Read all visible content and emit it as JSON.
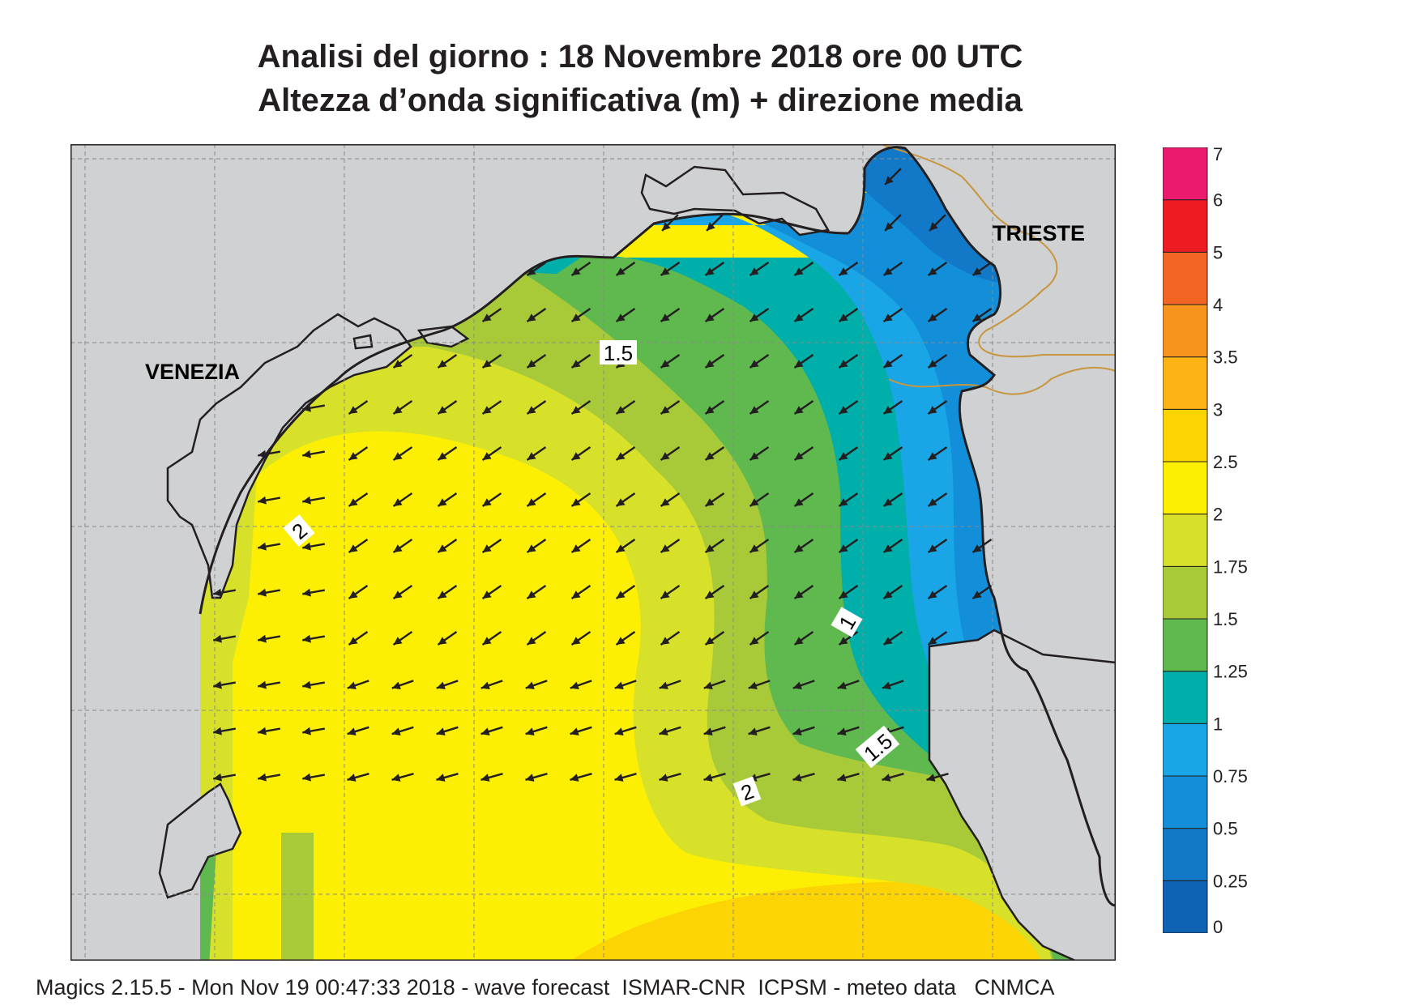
{
  "title": {
    "line1": "Analisi del giorno :  18 Novembre  2018   ore 00 UTC",
    "line2": "Altezza d’onda significativa (m) + direzione media"
  },
  "map": {
    "labels": {
      "venezia": "VENEZIA",
      "trieste": "TRIESTE"
    },
    "contour_labels": [
      "1.5",
      "2",
      "1",
      "1.5",
      "2"
    ],
    "arrow_direction": "south-west",
    "colors": {
      "land": "#cfd1d3",
      "coast": "#231f20",
      "border": "#c8963e",
      "arrow": "#231f20"
    }
  },
  "colorbar": {
    "levels": [
      "0",
      "0.25",
      "0.5",
      "0.75",
      "1",
      "1.25",
      "1.5",
      "1.75",
      "2",
      "2.5",
      "3",
      "3.5",
      "4",
      "5",
      "6",
      "7"
    ],
    "colors": [
      "#0e63b4",
      "#1279c8",
      "#138fd9",
      "#1aa5e6",
      "#00aeaa",
      "#60b94e",
      "#a8ca38",
      "#d8e12a",
      "#fcef04",
      "#fcd403",
      "#fbb316",
      "#f7941d",
      "#f26522",
      "#ed1c24",
      "#ec1a6e"
    ]
  },
  "footer": "Magics 2.15.5 - Mon Nov 19 00:47:33 2018 - wave forecast  ISMAR-CNR  ICPSM - meteo data   CNMCA"
}
